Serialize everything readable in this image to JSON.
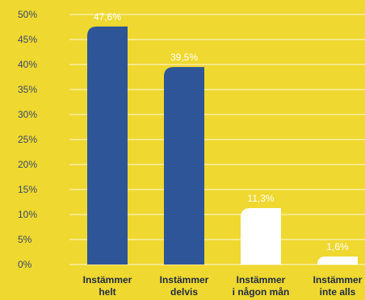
{
  "chart_data": {
    "type": "bar",
    "title": "",
    "xlabel": "",
    "ylabel": "",
    "ylim": [
      0,
      50
    ],
    "y_tick_step": 5,
    "y_tick_suffix": "%",
    "grid": true,
    "categories": [
      [
        "Instämmer",
        "helt"
      ],
      [
        "Instämmer",
        "delvis"
      ],
      [
        "Instämmer",
        "i någon mån"
      ],
      [
        "Instämmer",
        "inte alls"
      ]
    ],
    "values": [
      47.6,
      39.5,
      11.3,
      1.6
    ],
    "value_labels": [
      "47,6%",
      "39,5%",
      "11,3%",
      "1,6%"
    ],
    "colors": [
      "#2e5597",
      "#2e5597",
      "#ffffff",
      "#ffffff"
    ],
    "background": "#efd82f",
    "gridline_color": "#ffffff"
  }
}
